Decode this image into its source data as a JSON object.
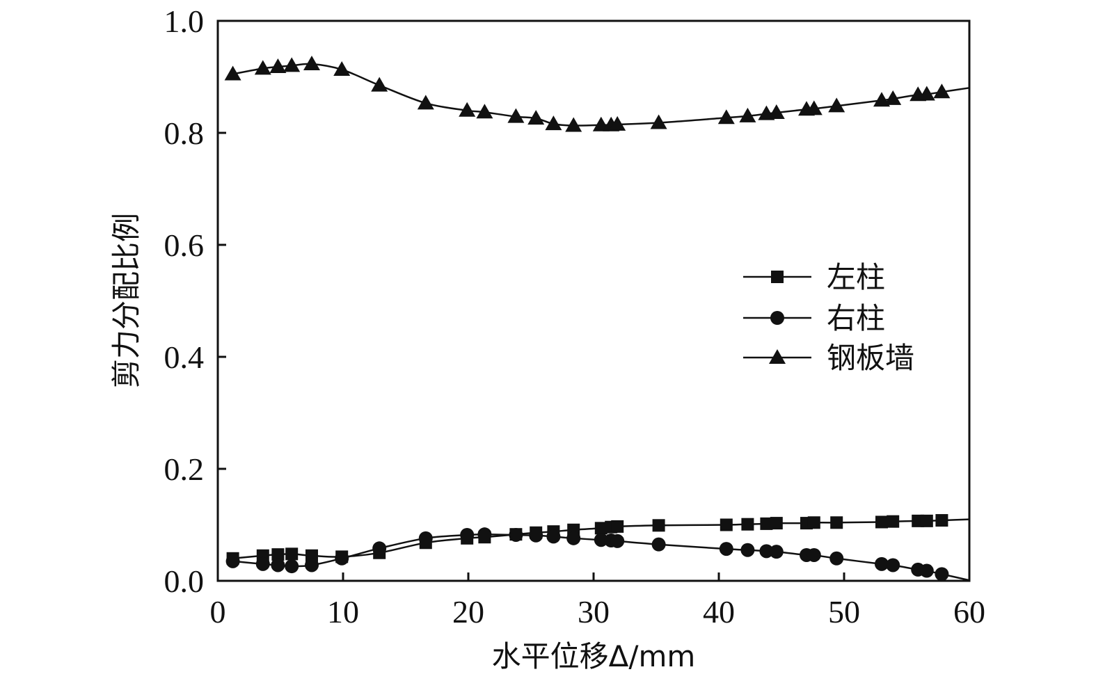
{
  "chart_data": {
    "type": "line",
    "title": "",
    "xlabel": "水平位移Δ/mm",
    "ylabel": "剪力分配比例",
    "xlim": [
      0,
      60
    ],
    "ylim": [
      0.0,
      1.0
    ],
    "xticks": [
      0,
      10,
      20,
      30,
      40,
      50,
      60
    ],
    "xtick_labels": [
      "0",
      "10",
      "20",
      "30",
      "40",
      "50",
      "60"
    ],
    "yticks": [
      0.0,
      0.2,
      0.4,
      0.6,
      0.8,
      1.0
    ],
    "ytick_labels": [
      "0.0",
      "0.2",
      "0.4",
      "0.6",
      "0.8",
      "1.0"
    ],
    "grid": false,
    "legend_position": "center-right",
    "series": [
      {
        "name": "左柱",
        "marker": "square",
        "color": "#111111",
        "x": [
          1.2,
          3.6,
          4.8,
          5.9,
          7.5,
          9.9,
          12.9,
          16.6,
          19.9,
          21.3,
          23.8,
          25.4,
          26.8,
          28.4,
          30.6,
          31.4,
          31.9,
          35.2,
          40.6,
          42.3,
          43.8,
          44.6,
          47.0,
          47.6,
          49.4,
          53.0,
          53.9,
          55.9,
          56.6,
          57.8
        ],
        "y": [
          0.04,
          0.045,
          0.047,
          0.048,
          0.045,
          0.043,
          0.05,
          0.068,
          0.076,
          0.078,
          0.083,
          0.086,
          0.088,
          0.091,
          0.094,
          0.096,
          0.097,
          0.099,
          0.1,
          0.101,
          0.102,
          0.103,
          0.103,
          0.104,
          0.104,
          0.105,
          0.106,
          0.107,
          0.107,
          0.108
        ]
      },
      {
        "name": "右柱",
        "marker": "circle",
        "color": "#111111",
        "x": [
          1.2,
          3.6,
          4.8,
          5.9,
          7.5,
          9.9,
          12.9,
          16.6,
          19.9,
          21.3,
          23.8,
          25.4,
          26.8,
          28.4,
          30.6,
          31.4,
          31.9,
          35.2,
          40.6,
          42.3,
          43.8,
          44.6,
          47.0,
          47.6,
          49.4,
          53.0,
          53.9,
          55.9,
          56.6,
          57.8
        ],
        "y": [
          0.035,
          0.03,
          0.028,
          0.026,
          0.028,
          0.04,
          0.058,
          0.076,
          0.082,
          0.083,
          0.082,
          0.081,
          0.079,
          0.076,
          0.073,
          0.072,
          0.071,
          0.065,
          0.057,
          0.055,
          0.053,
          0.052,
          0.046,
          0.046,
          0.04,
          0.03,
          0.028,
          0.02,
          0.018,
          0.012
        ]
      },
      {
        "name": "钢板墙",
        "marker": "triangle",
        "color": "#111111",
        "x": [
          1.2,
          3.6,
          4.8,
          5.9,
          7.5,
          9.9,
          12.9,
          16.6,
          19.9,
          21.3,
          23.8,
          25.4,
          26.8,
          28.4,
          30.6,
          31.4,
          31.9,
          35.2,
          40.6,
          42.3,
          43.8,
          44.6,
          47.0,
          47.6,
          49.4,
          53.0,
          53.9,
          55.9,
          56.6,
          57.8
        ],
        "y": [
          0.905,
          0.915,
          0.918,
          0.92,
          0.923,
          0.913,
          0.885,
          0.853,
          0.84,
          0.837,
          0.829,
          0.826,
          0.816,
          0.813,
          0.814,
          0.814,
          0.815,
          0.818,
          0.827,
          0.83,
          0.834,
          0.836,
          0.842,
          0.843,
          0.848,
          0.858,
          0.861,
          0.868,
          0.869,
          0.873
        ]
      }
    ]
  }
}
